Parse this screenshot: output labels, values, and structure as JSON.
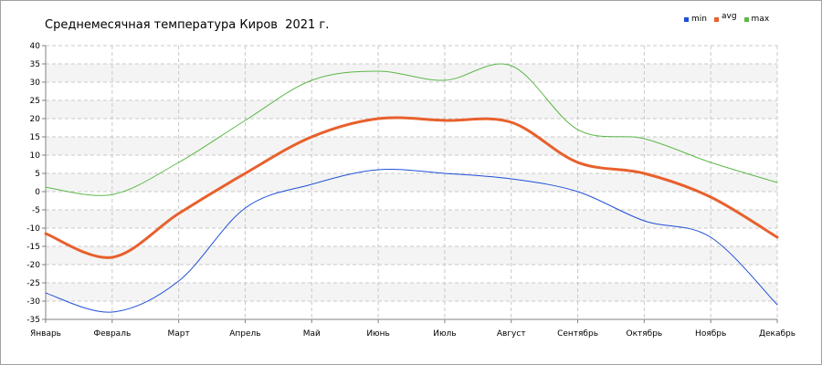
{
  "chart_data": {
    "type": "line",
    "title": "Среднемесячная температура Киров  2021 г.",
    "categories": [
      "Январь",
      "Февраль",
      "Март",
      "Апрель",
      "Май",
      "Июнь",
      "Июль",
      "Август",
      "Сентябрь",
      "Октябрь",
      "Ноябрь",
      "Декабрь"
    ],
    "series": [
      {
        "name": "min",
        "color": "#1f4fd8",
        "width": 1,
        "values": [
          -27.8,
          -33.0,
          -24.5,
          -4.5,
          2.0,
          6.0,
          5.0,
          3.5,
          0.0,
          -8.0,
          -12.5,
          -31.0
        ]
      },
      {
        "name": "avg",
        "color": "#e8602c",
        "width": 3,
        "values": [
          -11.5,
          -18.0,
          -6.0,
          5.0,
          15.0,
          20.0,
          19.5,
          19.0,
          8.0,
          5.0,
          -1.5,
          -12.5
        ]
      },
      {
        "name": "max",
        "color": "#5db84a",
        "width": 1,
        "values": [
          1.2,
          -0.8,
          8.0,
          19.5,
          30.5,
          33.0,
          30.5,
          34.5,
          17.0,
          14.5,
          8.0,
          2.5
        ]
      }
    ],
    "yticks": [
      "-35",
      "-30",
      "-25",
      "-20",
      "-15",
      "-10",
      "-5",
      "0",
      "5",
      "10",
      "15",
      "20",
      "25",
      "30",
      "35",
      "40"
    ],
    "ylim": [
      -35,
      40
    ],
    "grid": true,
    "legend_position": "top-right"
  }
}
